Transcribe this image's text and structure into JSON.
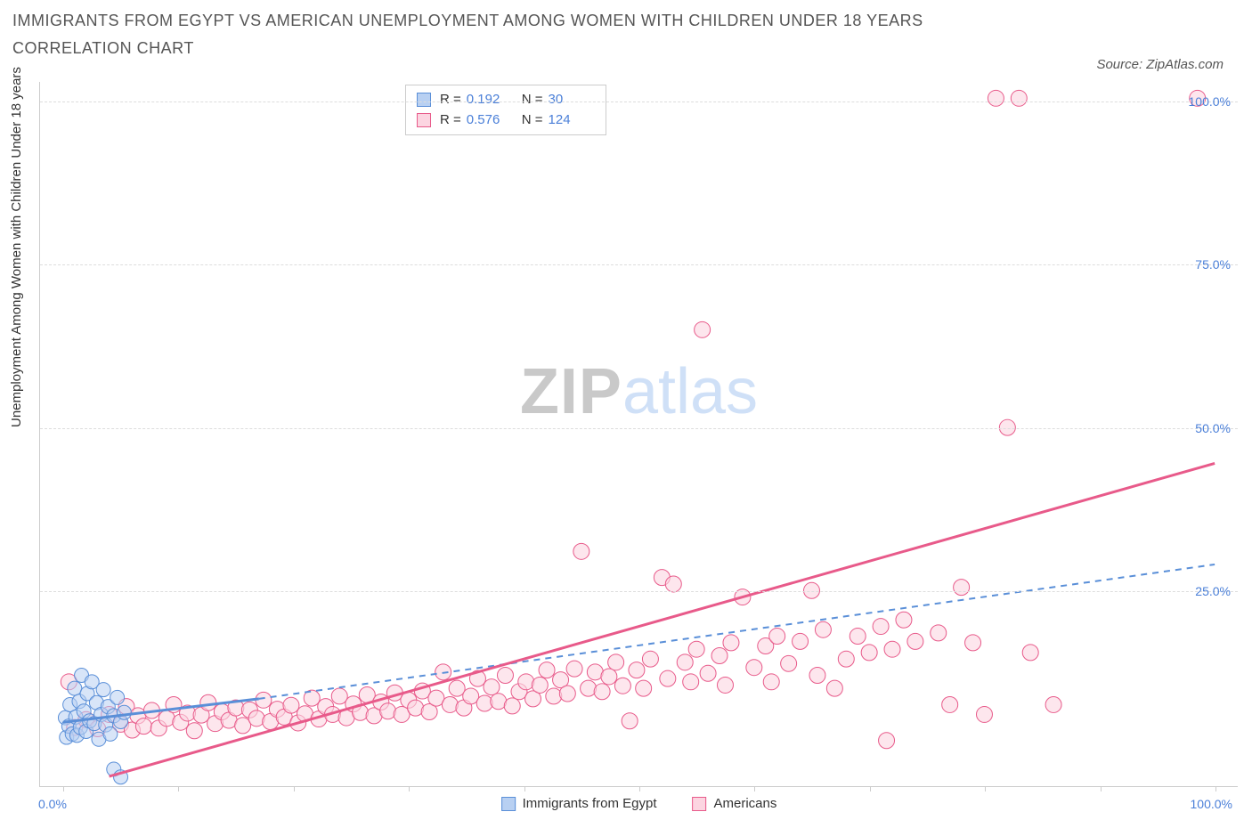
{
  "header": {
    "title": "IMMIGRANTS FROM EGYPT VS AMERICAN UNEMPLOYMENT AMONG WOMEN WITH CHILDREN UNDER 18 YEARS CORRELATION CHART",
    "source_label": "Source: ZipAtlas.com"
  },
  "axes": {
    "y_label": "Unemployment Among Women with Children Under 18 years",
    "y_ticks": [
      {
        "value": 25,
        "label": "25.0%"
      },
      {
        "value": 50,
        "label": "50.0%"
      },
      {
        "value": 75,
        "label": "75.0%"
      },
      {
        "value": 100,
        "label": "100.0%"
      }
    ],
    "y_min": -5,
    "y_max": 103,
    "x_ticks_pct": [
      0,
      10,
      20,
      30,
      40,
      50,
      60,
      70,
      80,
      90,
      100
    ],
    "x_origin_label": "0.0%",
    "x_max_label": "100.0%",
    "x_min": -2,
    "x_max": 102
  },
  "watermark": {
    "part1": "ZIP",
    "part2": "atlas"
  },
  "series": {
    "blue": {
      "label": "Immigrants from Egypt",
      "fill": "#b8d0f2",
      "stroke": "#5a8fd8",
      "fill_opacity": 0.55,
      "marker_r": 8,
      "R_label": "R =",
      "R_value": "0.192",
      "N_label": "N =",
      "N_value": "30",
      "points": [
        [
          0.2,
          5.5
        ],
        [
          0.3,
          2.5
        ],
        [
          0.5,
          4.2
        ],
        [
          0.6,
          7.5
        ],
        [
          0.8,
          3.0
        ],
        [
          1.0,
          10.0
        ],
        [
          1.1,
          5.6
        ],
        [
          1.2,
          2.8
        ],
        [
          1.4,
          8.0
        ],
        [
          1.5,
          4.0
        ],
        [
          1.6,
          12.0
        ],
        [
          1.8,
          6.5
        ],
        [
          2.0,
          3.4
        ],
        [
          2.1,
          9.2
        ],
        [
          2.3,
          5.0
        ],
        [
          2.5,
          11.0
        ],
        [
          2.7,
          4.6
        ],
        [
          2.9,
          7.8
        ],
        [
          3.1,
          2.2
        ],
        [
          3.3,
          6.0
        ],
        [
          3.5,
          9.8
        ],
        [
          3.7,
          4.4
        ],
        [
          3.9,
          7.2
        ],
        [
          4.1,
          3.0
        ],
        [
          4.4,
          -2.4
        ],
        [
          4.4,
          5.8
        ],
        [
          4.7,
          8.6
        ],
        [
          5.0,
          4.9
        ],
        [
          5.0,
          -3.6
        ],
        [
          5.3,
          6.3
        ]
      ],
      "trend": {
        "x1": 0,
        "y1": 4.8,
        "x2": 17,
        "y2": 8.4,
        "extend_x2": 100,
        "extend_y2": 29.0,
        "dash": true
      }
    },
    "pink": {
      "label": "Americans",
      "fill": "#fcd5e1",
      "stroke": "#e85a8a",
      "fill_opacity": 0.6,
      "marker_r": 9,
      "R_label": "R =",
      "R_value": "0.576",
      "N_label": "N =",
      "N_value": "124",
      "points": [
        [
          0.5,
          11.0
        ],
        [
          1,
          4
        ],
        [
          2,
          5.2
        ],
        [
          3,
          3.8
        ],
        [
          4,
          6.0
        ],
        [
          5,
          4.5
        ],
        [
          5.5,
          7.2
        ],
        [
          6,
          3.6
        ],
        [
          6.5,
          5.8
        ],
        [
          7,
          4.2
        ],
        [
          7.7,
          6.6
        ],
        [
          8.3,
          3.9
        ],
        [
          9,
          5.4
        ],
        [
          9.6,
          7.5
        ],
        [
          10.2,
          4.8
        ],
        [
          10.8,
          6.2
        ],
        [
          11.4,
          3.5
        ],
        [
          12,
          5.9
        ],
        [
          12.6,
          7.8
        ],
        [
          13.2,
          4.6
        ],
        [
          13.8,
          6.4
        ],
        [
          14.4,
          5.1
        ],
        [
          15,
          7.0
        ],
        [
          15.6,
          4.3
        ],
        [
          16.2,
          6.7
        ],
        [
          16.8,
          5.4
        ],
        [
          17.4,
          8.2
        ],
        [
          18,
          4.9
        ],
        [
          18.6,
          6.8
        ],
        [
          19.2,
          5.6
        ],
        [
          19.8,
          7.4
        ],
        [
          20.4,
          4.7
        ],
        [
          21,
          6.1
        ],
        [
          21.6,
          8.5
        ],
        [
          22.2,
          5.3
        ],
        [
          22.8,
          7.2
        ],
        [
          23.4,
          6.0
        ],
        [
          24,
          8.8
        ],
        [
          24.6,
          5.5
        ],
        [
          25.2,
          7.6
        ],
        [
          25.8,
          6.3
        ],
        [
          26.4,
          9.0
        ],
        [
          27,
          5.8
        ],
        [
          27.6,
          7.9
        ],
        [
          28.2,
          6.5
        ],
        [
          28.8,
          9.3
        ],
        [
          29.4,
          6.0
        ],
        [
          30,
          8.2
        ],
        [
          30.6,
          7.0
        ],
        [
          31.2,
          9.6
        ],
        [
          31.8,
          6.4
        ],
        [
          32.4,
          8.5
        ],
        [
          33,
          12.5
        ],
        [
          33.6,
          7.5
        ],
        [
          34.2,
          10.0
        ],
        [
          34.8,
          7.0
        ],
        [
          35.4,
          8.8
        ],
        [
          36,
          11.5
        ],
        [
          36.6,
          7.7
        ],
        [
          37.2,
          10.2
        ],
        [
          37.8,
          8.0
        ],
        [
          38.4,
          12.0
        ],
        [
          39,
          7.3
        ],
        [
          39.6,
          9.5
        ],
        [
          40.2,
          11.0
        ],
        [
          40.8,
          8.4
        ],
        [
          41.4,
          10.5
        ],
        [
          42,
          12.8
        ],
        [
          42.6,
          8.8
        ],
        [
          43.2,
          11.3
        ],
        [
          43.8,
          9.2
        ],
        [
          44.4,
          13.0
        ],
        [
          45,
          31.0
        ],
        [
          45.6,
          10.0
        ],
        [
          46.2,
          12.5
        ],
        [
          46.8,
          9.5
        ],
        [
          47.4,
          11.8
        ],
        [
          48,
          14.0
        ],
        [
          48.6,
          10.4
        ],
        [
          49.2,
          5.0
        ],
        [
          49.8,
          12.8
        ],
        [
          50.4,
          10.0
        ],
        [
          51,
          14.5
        ],
        [
          52,
          27.0
        ],
        [
          52.5,
          11.5
        ],
        [
          53,
          26.0
        ],
        [
          54,
          14.0
        ],
        [
          54.5,
          11.0
        ],
        [
          55,
          16.0
        ],
        [
          55.5,
          65.0
        ],
        [
          56,
          12.3
        ],
        [
          57,
          15.0
        ],
        [
          57.5,
          10.5
        ],
        [
          58,
          17.0
        ],
        [
          59,
          24.0
        ],
        [
          60,
          13.2
        ],
        [
          61,
          16.5
        ],
        [
          61.5,
          11.0
        ],
        [
          62,
          18.0
        ],
        [
          63,
          13.8
        ],
        [
          64,
          17.2
        ],
        [
          65,
          25.0
        ],
        [
          65.5,
          12.0
        ],
        [
          66,
          19.0
        ],
        [
          67,
          10.0
        ],
        [
          68,
          14.5
        ],
        [
          69,
          18.0
        ],
        [
          70,
          15.5
        ],
        [
          71,
          19.5
        ],
        [
          71.5,
          2.0
        ],
        [
          72,
          16.0
        ],
        [
          73,
          20.5
        ],
        [
          74,
          17.2
        ],
        [
          76,
          18.5
        ],
        [
          77,
          7.5
        ],
        [
          78,
          25.5
        ],
        [
          79,
          17.0
        ],
        [
          80,
          6.0
        ],
        [
          82,
          50.0
        ],
        [
          81,
          100.5
        ],
        [
          83,
          100.5
        ],
        [
          84,
          15.5
        ],
        [
          86,
          7.5
        ],
        [
          98.5,
          100.5
        ]
      ],
      "trend": {
        "x1": 4,
        "y1": -3.5,
        "x2": 100,
        "y2": 44.5
      }
    }
  },
  "style": {
    "background": "#ffffff",
    "grid_color": "#dddddd",
    "axis_color": "#cccccc",
    "tick_label_color": "#4a7fd8",
    "title_color": "#555555",
    "title_fontsize": 18,
    "axis_label_fontsize": 15,
    "tick_fontsize": 14,
    "legend_fontsize": 15,
    "watermark_fontsize": 72,
    "watermark_color_1": "#c9c9c9",
    "watermark_color_2": "#cfe0f7",
    "trend_line_width_solid": 3,
    "trend_line_width_dash": 2
  }
}
